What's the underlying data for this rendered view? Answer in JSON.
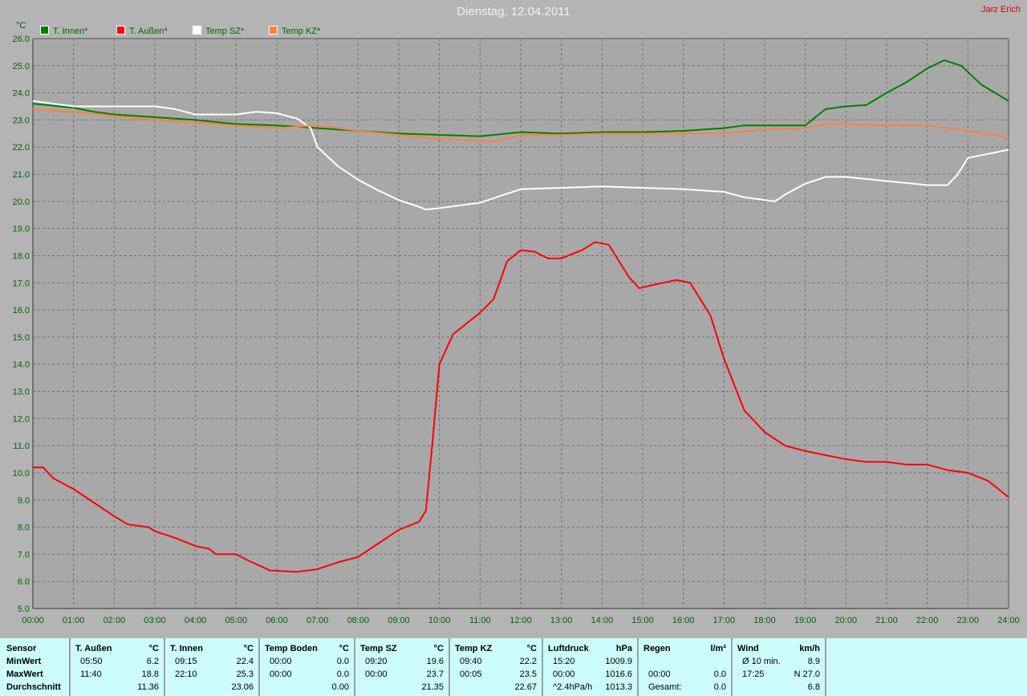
{
  "header": {
    "title": "Dienstag, 12.04.2011",
    "author": "Jarz Erich"
  },
  "chart_data": {
    "type": "line",
    "title": "Dienstag, 12.04.2011",
    "ylabel": "°C",
    "xlabel": "",
    "ylim": [
      5.0,
      26.0
    ],
    "yticks": [
      "5.0",
      "6.0",
      "7.0",
      "8.0",
      "9.0",
      "10.0",
      "11.0",
      "12.0",
      "13.0",
      "14.0",
      "15.0",
      "16.0",
      "17.0",
      "18.0",
      "19.0",
      "20.0",
      "21.0",
      "22.0",
      "23.0",
      "24.0",
      "25.0",
      "26.0"
    ],
    "xlim": [
      "00:00",
      "24:00"
    ],
    "xticks": [
      "00:00",
      "01:00",
      "02:00",
      "03:00",
      "04:00",
      "05:00",
      "06:00",
      "07:00",
      "08:00",
      "09:00",
      "10:00",
      "11:00",
      "12:00",
      "13:00",
      "14:00",
      "15:00",
      "16:00",
      "17:00",
      "18:00",
      "19:00",
      "20:00",
      "21:00",
      "22:00",
      "23:00",
      "24:00"
    ],
    "grid": true,
    "legend": "top-left",
    "series": [
      {
        "name": "T. Innen*",
        "color": "#008000",
        "points": [
          [
            "00:00",
            23.6
          ],
          [
            "01:00",
            23.45
          ],
          [
            "01:30",
            23.3
          ],
          [
            "02:00",
            23.2
          ],
          [
            "03:00",
            23.1
          ],
          [
            "04:00",
            23.0
          ],
          [
            "05:00",
            22.85
          ],
          [
            "06:00",
            22.8
          ],
          [
            "07:00",
            22.7
          ],
          [
            "08:00",
            22.6
          ],
          [
            "09:00",
            22.5
          ],
          [
            "10:00",
            22.45
          ],
          [
            "11:00",
            22.4
          ],
          [
            "12:00",
            22.55
          ],
          [
            "13:00",
            22.5
          ],
          [
            "14:00",
            22.55
          ],
          [
            "15:00",
            22.55
          ],
          [
            "16:00",
            22.6
          ],
          [
            "17:00",
            22.7
          ],
          [
            "17:30",
            22.8
          ],
          [
            "18:00",
            22.8
          ],
          [
            "19:00",
            22.8
          ],
          [
            "19:30",
            23.4
          ],
          [
            "20:00",
            23.5
          ],
          [
            "20:30",
            23.55
          ],
          [
            "21:00",
            24.0
          ],
          [
            "21:30",
            24.4
          ],
          [
            "22:00",
            24.9
          ],
          [
            "22:25",
            25.2
          ],
          [
            "22:50",
            25.0
          ],
          [
            "23:20",
            24.3
          ],
          [
            "24:00",
            23.7
          ]
        ]
      },
      {
        "name": "T. Außen*",
        "color": "#ff0000",
        "points": [
          [
            "00:00",
            10.2
          ],
          [
            "00:15",
            10.2
          ],
          [
            "00:30",
            9.8
          ],
          [
            "01:00",
            9.4
          ],
          [
            "01:30",
            8.9
          ],
          [
            "02:00",
            8.4
          ],
          [
            "02:20",
            8.1
          ],
          [
            "02:50",
            8.0
          ],
          [
            "03:00",
            7.85
          ],
          [
            "03:30",
            7.6
          ],
          [
            "04:00",
            7.3
          ],
          [
            "04:20",
            7.2
          ],
          [
            "04:30",
            7.0
          ],
          [
            "05:00",
            7.0
          ],
          [
            "05:15",
            6.8
          ],
          [
            "05:50",
            6.4
          ],
          [
            "06:30",
            6.35
          ],
          [
            "07:00",
            6.45
          ],
          [
            "07:30",
            6.7
          ],
          [
            "08:00",
            6.9
          ],
          [
            "08:30",
            7.4
          ],
          [
            "09:00",
            7.9
          ],
          [
            "09:30",
            8.2
          ],
          [
            "09:40",
            8.6
          ],
          [
            "09:50",
            11.2
          ],
          [
            "10:00",
            14.0
          ],
          [
            "10:20",
            15.1
          ],
          [
            "10:40",
            15.5
          ],
          [
            "11:00",
            15.9
          ],
          [
            "11:20",
            16.4
          ],
          [
            "11:40",
            17.8
          ],
          [
            "12:00",
            18.2
          ],
          [
            "12:20",
            18.15
          ],
          [
            "12:40",
            17.9
          ],
          [
            "13:00",
            17.9
          ],
          [
            "13:30",
            18.2
          ],
          [
            "13:50",
            18.5
          ],
          [
            "14:10",
            18.4
          ],
          [
            "14:40",
            17.2
          ],
          [
            "14:55",
            16.8
          ],
          [
            "15:20",
            16.95
          ],
          [
            "15:50",
            17.1
          ],
          [
            "16:10",
            17.0
          ],
          [
            "16:40",
            15.8
          ],
          [
            "17:00",
            14.2
          ],
          [
            "17:30",
            12.3
          ],
          [
            "18:00",
            11.5
          ],
          [
            "18:30",
            11.0
          ],
          [
            "19:00",
            10.8
          ],
          [
            "19:30",
            10.65
          ],
          [
            "20:00",
            10.5
          ],
          [
            "20:30",
            10.4
          ],
          [
            "21:00",
            10.4
          ],
          [
            "21:30",
            10.3
          ],
          [
            "22:00",
            10.3
          ],
          [
            "22:30",
            10.1
          ],
          [
            "23:00",
            10.0
          ],
          [
            "23:30",
            9.7
          ],
          [
            "24:00",
            9.1
          ]
        ]
      },
      {
        "name": "Temp SZ*",
        "color": "#ffffff",
        "points": [
          [
            "00:00",
            23.7
          ],
          [
            "01:00",
            23.5
          ],
          [
            "02:00",
            23.5
          ],
          [
            "03:00",
            23.5
          ],
          [
            "03:30",
            23.4
          ],
          [
            "04:00",
            23.2
          ],
          [
            "05:00",
            23.2
          ],
          [
            "05:30",
            23.3
          ],
          [
            "06:00",
            23.25
          ],
          [
            "06:30",
            23.05
          ],
          [
            "06:50",
            22.7
          ],
          [
            "07:00",
            22.0
          ],
          [
            "07:30",
            21.3
          ],
          [
            "08:00",
            20.8
          ],
          [
            "08:30",
            20.4
          ],
          [
            "09:00",
            20.05
          ],
          [
            "09:30",
            19.8
          ],
          [
            "09:40",
            19.7
          ],
          [
            "10:00",
            19.75
          ],
          [
            "11:00",
            19.95
          ],
          [
            "12:00",
            20.45
          ],
          [
            "13:00",
            20.5
          ],
          [
            "14:00",
            20.55
          ],
          [
            "15:00",
            20.5
          ],
          [
            "16:00",
            20.45
          ],
          [
            "17:00",
            20.35
          ],
          [
            "17:30",
            20.15
          ],
          [
            "18:00",
            20.05
          ],
          [
            "18:15",
            20.0
          ],
          [
            "18:30",
            20.25
          ],
          [
            "19:00",
            20.65
          ],
          [
            "19:30",
            20.9
          ],
          [
            "20:00",
            20.9
          ],
          [
            "21:00",
            20.75
          ],
          [
            "22:00",
            20.6
          ],
          [
            "22:30",
            20.6
          ],
          [
            "22:45",
            21.0
          ],
          [
            "23:00",
            21.6
          ],
          [
            "23:30",
            21.75
          ],
          [
            "24:00",
            21.9
          ]
        ]
      },
      {
        "name": "Temp KZ*",
        "color": "#ff8040",
        "points": [
          [
            "00:00",
            23.4
          ],
          [
            "01:00",
            23.3
          ],
          [
            "02:00",
            23.15
          ],
          [
            "03:00",
            23.0
          ],
          [
            "04:00",
            22.9
          ],
          [
            "05:00",
            22.8
          ],
          [
            "06:00",
            22.7
          ],
          [
            "07:00",
            22.8
          ],
          [
            "08:00",
            22.6
          ],
          [
            "09:00",
            22.45
          ],
          [
            "10:00",
            22.3
          ],
          [
            "11:00",
            22.25
          ],
          [
            "11:20",
            22.2
          ],
          [
            "12:00",
            22.45
          ],
          [
            "13:00",
            22.45
          ],
          [
            "14:00",
            22.5
          ],
          [
            "15:00",
            22.5
          ],
          [
            "16:00",
            22.5
          ],
          [
            "17:00",
            22.5
          ],
          [
            "18:00",
            22.65
          ],
          [
            "19:00",
            22.7
          ],
          [
            "19:30",
            22.85
          ],
          [
            "20:00",
            22.85
          ],
          [
            "21:00",
            22.8
          ],
          [
            "22:00",
            22.8
          ],
          [
            "23:00",
            22.6
          ],
          [
            "24:00",
            22.35
          ]
        ]
      }
    ]
  },
  "table": {
    "row_labels": [
      "Sensor",
      "MinWert",
      "MaxWert",
      "Durchschnitt"
    ],
    "columns": [
      {
        "name": "T. Außen",
        "unit": "°C",
        "rows": [
          [
            "05:50",
            "6.2"
          ],
          [
            "11:40",
            "18.8"
          ],
          [
            "",
            "11.36"
          ]
        ]
      },
      {
        "name": "T. Innen",
        "unit": "°C",
        "rows": [
          [
            "09:15",
            "22.4"
          ],
          [
            "22:10",
            "25.3"
          ],
          [
            "",
            "23.06"
          ]
        ]
      },
      {
        "name": "Temp Boden",
        "unit": "°C",
        "rows": [
          [
            "00:00",
            "0.0"
          ],
          [
            "00:00",
            "0.0"
          ],
          [
            "",
            "0.00"
          ]
        ]
      },
      {
        "name": "Temp SZ",
        "unit": "°C",
        "rows": [
          [
            "09:20",
            "19.6"
          ],
          [
            "00:00",
            "23.7"
          ],
          [
            "",
            "21.35"
          ]
        ]
      },
      {
        "name": "Temp KZ",
        "unit": "°C",
        "rows": [
          [
            "09:40",
            "22.2"
          ],
          [
            "00:05",
            "23.5"
          ],
          [
            "",
            "22.67"
          ]
        ]
      },
      {
        "name": "Luftdruck",
        "unit": "hPa",
        "rows": [
          [
            "15:20",
            "1009.9"
          ],
          [
            "00:00",
            "1016.6"
          ],
          [
            "^2.4hPa/h",
            "1013.3"
          ]
        ]
      },
      {
        "name": "Regen",
        "unit": "l/m²",
        "rows": [
          [
            "",
            ""
          ],
          [
            "00:00",
            "0.0"
          ],
          [
            "Gesamt:",
            "0.0"
          ]
        ]
      },
      {
        "name": "Wind",
        "unit": "km/h",
        "rows": [
          [
            "Ø 10 min.",
            "8.9"
          ],
          [
            "17:25",
            "N 27.0"
          ],
          [
            "",
            "6.8"
          ]
        ]
      }
    ]
  }
}
